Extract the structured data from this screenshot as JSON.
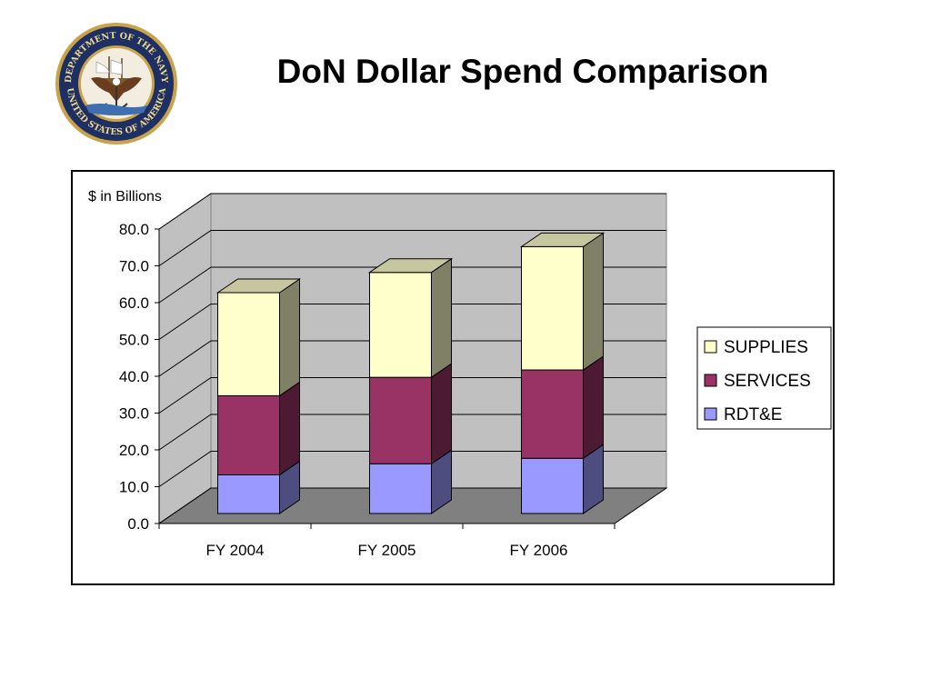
{
  "slide": {
    "title": "DoN Dollar Spend Comparison",
    "seal_text": {
      "top": "DEPARTMENT OF THE NAVY",
      "bottom": "UNITED STATES OF AMERICA"
    }
  },
  "colors": {
    "supplies": "#ffffcc",
    "services": "#993366",
    "rdte": "#9999ff",
    "wall": "#c0c0c0",
    "floor": "#808080"
  },
  "chart_data": {
    "type": "bar",
    "stacked": true,
    "three_d": true,
    "ylabel": "$ in Billions",
    "ylim": [
      0,
      80
    ],
    "y_ticks": [
      "0.0",
      "10.0",
      "20.0",
      "30.0",
      "40.0",
      "50.0",
      "60.0",
      "70.0",
      "80.0"
    ],
    "categories": [
      "FY 2004",
      "FY 2005",
      "FY 2006"
    ],
    "series": [
      {
        "name": "RDT&E",
        "color_key": "rdte",
        "values": [
          10.5,
          13.5,
          15.0
        ]
      },
      {
        "name": "SERVICES",
        "color_key": "services",
        "values": [
          21.5,
          23.5,
          24.0
        ]
      },
      {
        "name": "SUPPLIES",
        "color_key": "supplies",
        "values": [
          28.0,
          28.5,
          33.5
        ]
      }
    ],
    "legend": {
      "position": "right",
      "order": [
        "SUPPLIES",
        "SERVICES",
        "RDT&E"
      ]
    },
    "grid": true
  }
}
